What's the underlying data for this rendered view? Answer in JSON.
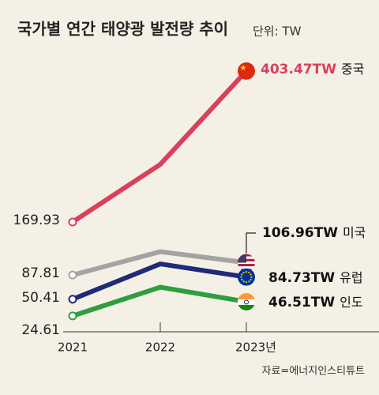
{
  "chart_data": {
    "type": "line",
    "title": "국가별 연간 태양광 발전량 추이",
    "subtitle": "단위: TW",
    "source": "자료=에너지인스티튜트",
    "categories": [
      "2021",
      "2022",
      "2023년"
    ],
    "series": [
      {
        "name": "중국",
        "color": "#d9405a",
        "values": [
          169.93,
          259,
          403.47
        ],
        "value_labels": [
          null,
          null,
          "403.47TW"
        ]
      },
      {
        "name": "미국",
        "color": "#a3a3a3",
        "values": [
          87.81,
          124,
          106.96
        ],
        "value_labels": [
          null,
          null,
          "106.96TW"
        ]
      },
      {
        "name": "유럽",
        "color": "#1f2a78",
        "values": [
          50.41,
          105,
          84.73
        ],
        "value_labels": [
          null,
          null,
          "84.73TW"
        ]
      },
      {
        "name": "인도",
        "color": "#2e9e3e",
        "values": [
          24.61,
          69,
          46.51
        ],
        "value_labels": [
          null,
          null,
          "46.51TW"
        ]
      }
    ],
    "ylim": [
      0,
      440
    ],
    "yticks": [
      24.61,
      50.41,
      87.81,
      169.93
    ]
  }
}
